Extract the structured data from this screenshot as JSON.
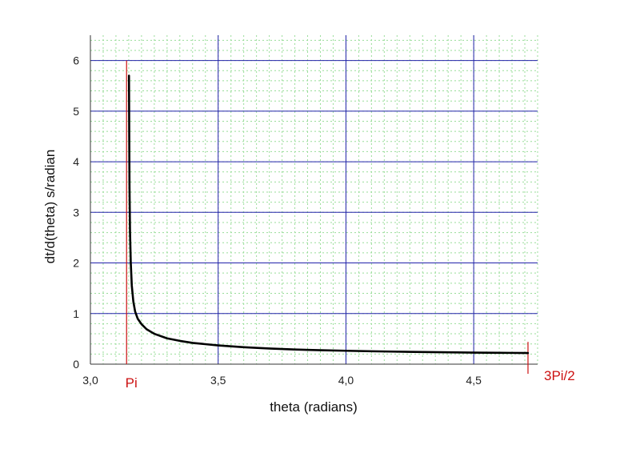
{
  "chart_data": {
    "type": "line",
    "xlabel": "theta (radians)",
    "ylabel": "dt/d(theta) s/radian",
    "xlim": [
      3.0,
      4.75
    ],
    "ylim": [
      0,
      6.5
    ],
    "x_ticks": [
      3.0,
      3.5,
      4.0,
      4.5
    ],
    "x_tick_labels": [
      "3,0",
      "3,5",
      "4,0",
      "4,5"
    ],
    "y_ticks": [
      0,
      1,
      2,
      3,
      4,
      5,
      6
    ],
    "y_tick_labels": [
      "0",
      "1",
      "2",
      "3",
      "4",
      "5",
      "6"
    ],
    "grid": {
      "major": true,
      "major_color": "#2222aa",
      "minor": true,
      "minor_color": "#99dd99",
      "minor_x_step": 0.05,
      "minor_y_step": 0.2
    },
    "line_color": "#000000",
    "marker_color": "#cc1111",
    "vertical_markers": [
      {
        "x": 3.1416,
        "label": "Pi"
      },
      {
        "x": 4.7124,
        "label": "3Pi/2"
      }
    ],
    "series": [
      {
        "x": [
          3.151,
          3.152,
          3.153,
          3.155,
          3.158,
          3.162,
          3.168,
          3.175,
          3.185,
          3.2,
          3.22,
          3.25,
          3.3,
          3.35,
          3.4,
          3.5,
          3.6,
          3.7,
          3.8,
          3.9,
          4.0,
          4.1,
          4.2,
          4.3,
          4.4,
          4.5,
          4.6,
          4.712
        ],
        "y": [
          5.7,
          4.5,
          3.5,
          2.62,
          2.0,
          1.55,
          1.24,
          1.04,
          0.9,
          0.79,
          0.69,
          0.6,
          0.51,
          0.46,
          0.42,
          0.37,
          0.335,
          0.31,
          0.29,
          0.275,
          0.265,
          0.255,
          0.247,
          0.24,
          0.234,
          0.229,
          0.225,
          0.22
        ]
      }
    ]
  }
}
